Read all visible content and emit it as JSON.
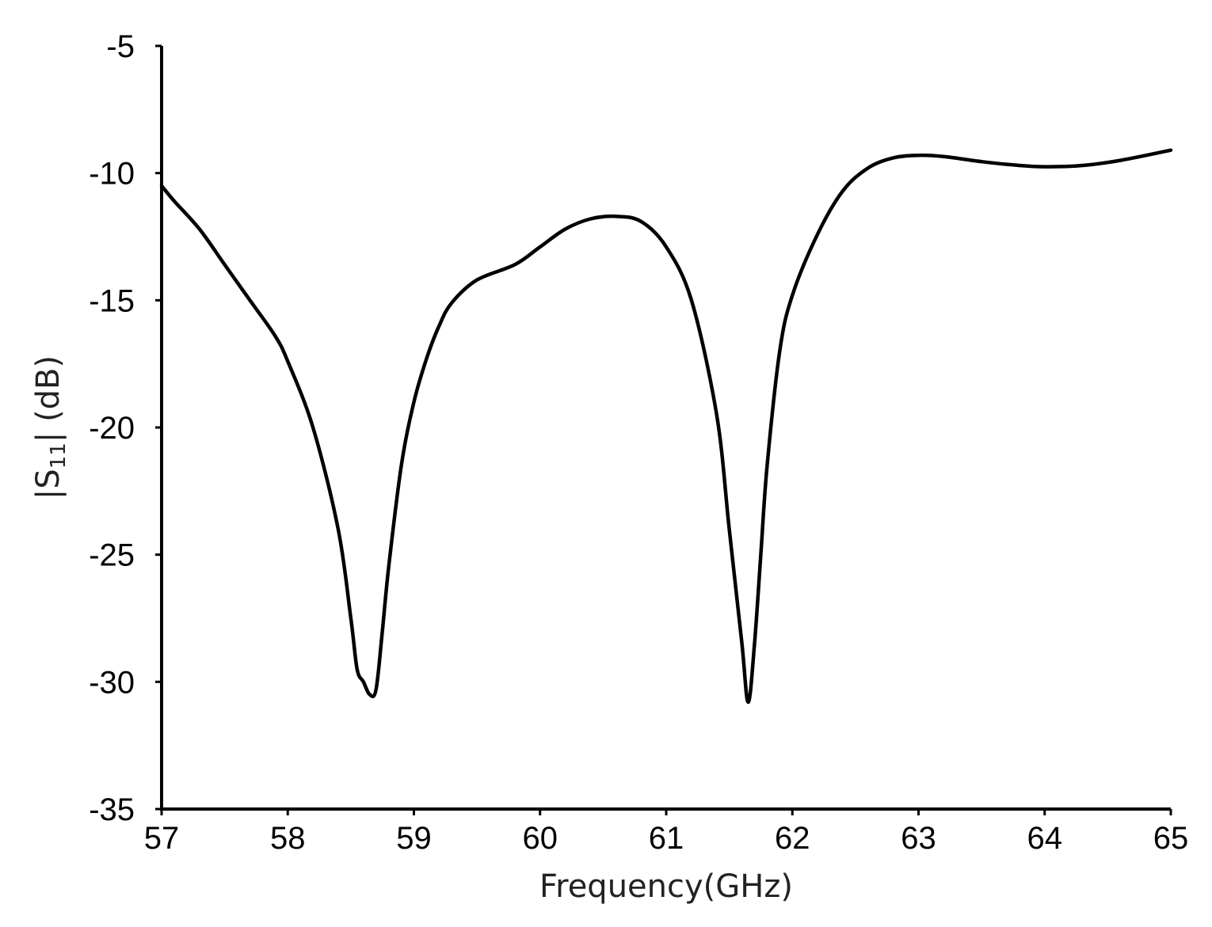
{
  "chart_data": {
    "type": "line",
    "xlabel": "Frequency(GHz)",
    "ylabel": "|S",
    "ylabel_subscript": "11",
    "ylabel_suffix": "| (dB)",
    "xlim": [
      57,
      65
    ],
    "ylim": [
      -35,
      -5
    ],
    "xticks": [
      "57",
      "58",
      "59",
      "60",
      "61",
      "62",
      "63",
      "64",
      "65"
    ],
    "yticks": [
      "-5",
      "-10",
      "-15",
      "-20",
      "-25",
      "-30",
      "-35"
    ],
    "grid": false,
    "line_color": "#000000",
    "series": [
      {
        "x": [
          57.0,
          57.1,
          57.3,
          57.5,
          57.7,
          57.9,
          58.0,
          58.2,
          58.4,
          58.5,
          58.55,
          58.6,
          58.65,
          58.7,
          58.75,
          58.8,
          58.9,
          59.0,
          59.1,
          59.2,
          59.3,
          59.5,
          59.8,
          60.0,
          60.2,
          60.4,
          60.6,
          60.8,
          61.0,
          61.2,
          61.4,
          61.5,
          61.6,
          61.65,
          61.7,
          61.75,
          61.8,
          61.9,
          62.0,
          62.2,
          62.4,
          62.6,
          62.8,
          63.0,
          63.2,
          63.5,
          63.8,
          64.0,
          64.3,
          64.6,
          65.0
        ],
        "y": [
          -10.5,
          -11.1,
          -12.2,
          -13.6,
          -15.0,
          -16.4,
          -17.4,
          -20.0,
          -24.0,
          -27.5,
          -29.5,
          -30.0,
          -30.5,
          -30.3,
          -28.0,
          -25.5,
          -21.5,
          -19.0,
          -17.3,
          -16.0,
          -15.1,
          -14.2,
          -13.6,
          -12.9,
          -12.2,
          -11.8,
          -11.7,
          -11.9,
          -12.9,
          -15.0,
          -19.5,
          -24.0,
          -28.5,
          -30.8,
          -28.5,
          -25.0,
          -21.5,
          -17.0,
          -14.8,
          -12.4,
          -10.7,
          -9.8,
          -9.4,
          -9.3,
          -9.35,
          -9.55,
          -9.7,
          -9.75,
          -9.7,
          -9.5,
          -9.1
        ]
      }
    ]
  }
}
